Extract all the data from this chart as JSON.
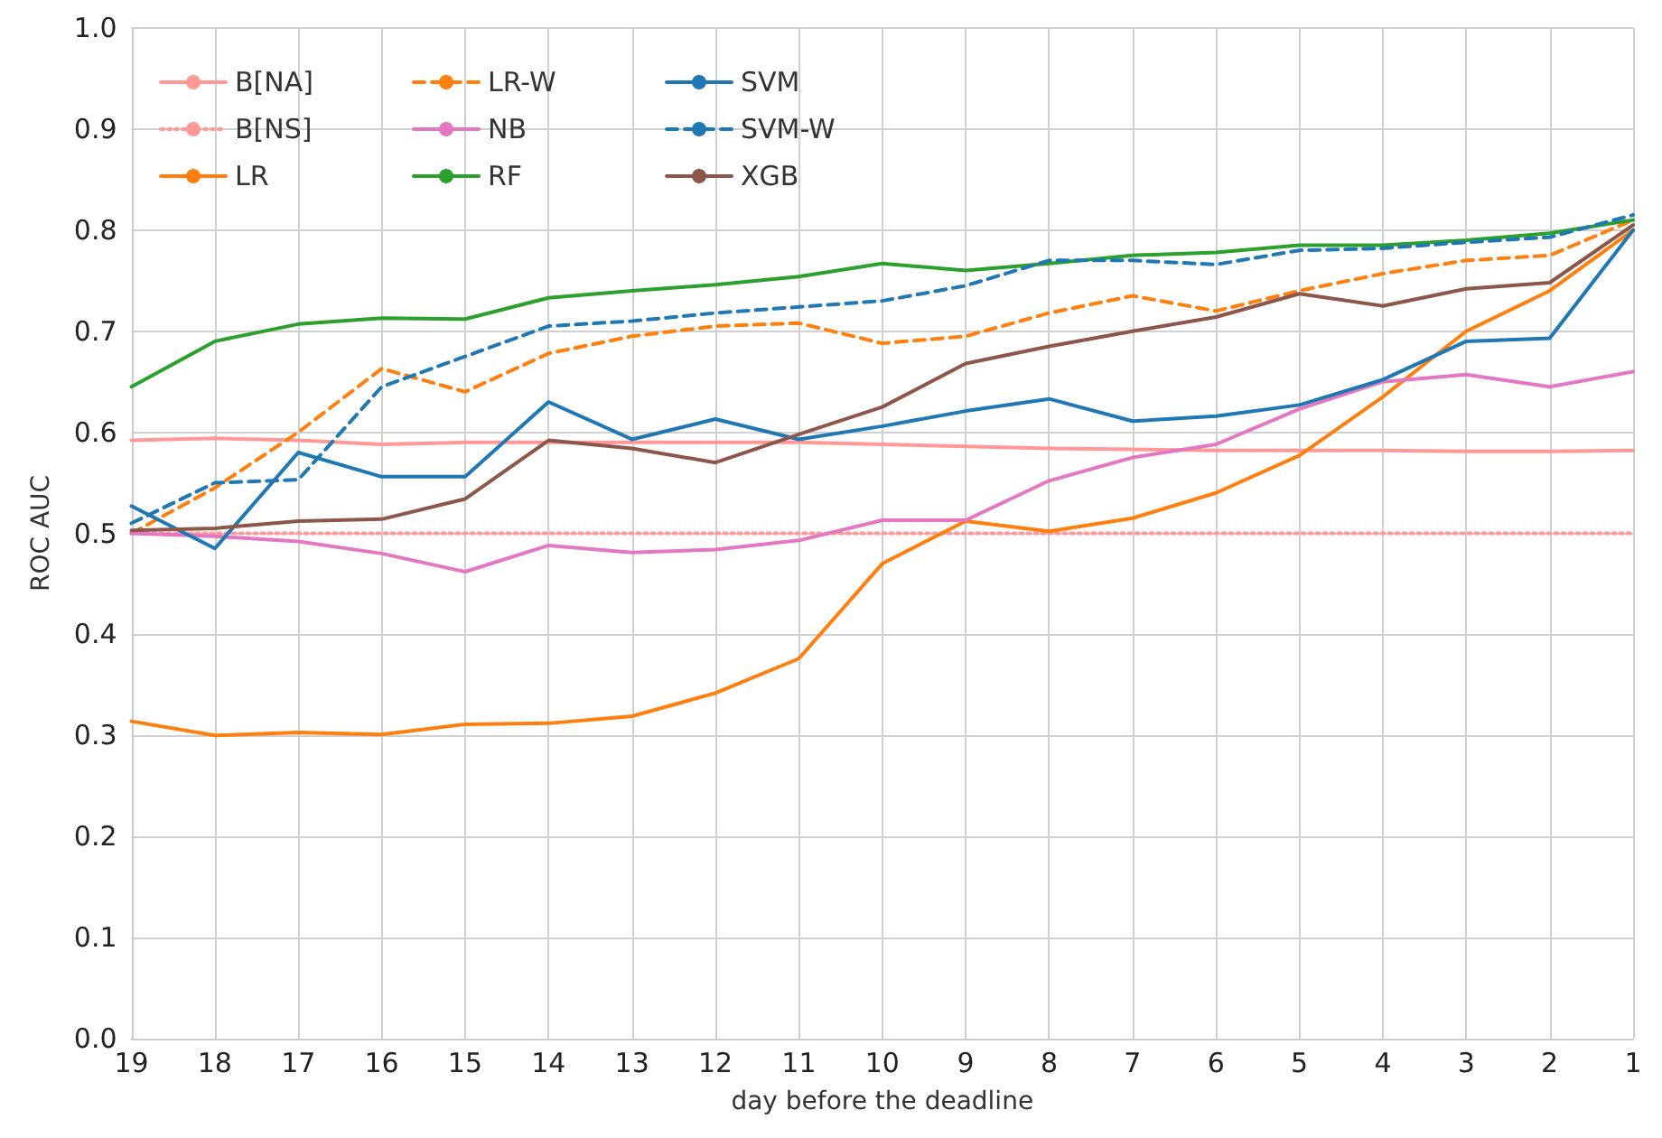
{
  "chart_data": {
    "type": "line",
    "xlabel": "day before the deadline",
    "ylabel": "ROC AUC",
    "x": [
      19,
      18,
      17,
      16,
      15,
      14,
      13,
      12,
      11,
      10,
      9,
      8,
      7,
      6,
      5,
      4,
      3,
      2,
      1
    ],
    "xlim": [
      19,
      1
    ],
    "xticks": [
      19,
      18,
      17,
      16,
      15,
      14,
      13,
      12,
      11,
      10,
      9,
      8,
      7,
      6,
      5,
      4,
      3,
      2,
      1
    ],
    "ylim": [
      0,
      1
    ],
    "yticks": [
      {
        "value": 0,
        "label": "0.0"
      },
      {
        "value": 0.1,
        "label": "0.1"
      },
      {
        "value": 0.2,
        "label": "0.2"
      },
      {
        "value": 0.3,
        "label": "0.3"
      },
      {
        "value": 0.4,
        "label": "0.4"
      },
      {
        "value": 0.5,
        "label": "0.5"
      },
      {
        "value": 0.6,
        "label": "0.6"
      },
      {
        "value": 0.7,
        "label": "0.7"
      },
      {
        "value": 0.8,
        "label": "0.8"
      },
      {
        "value": 0.9,
        "label": "0.9"
      },
      {
        "value": 1,
        "label": "1.0"
      }
    ],
    "grid": true,
    "legend": "top left",
    "marker": "none",
    "series": [
      {
        "name": "B[NA]",
        "color": "#ff9896",
        "line_style": "solid",
        "values": [
          0.592,
          0.594,
          0.592,
          0.588,
          0.59,
          0.59,
          0.59,
          0.59,
          0.59,
          0.588,
          0.586,
          0.584,
          0.583,
          0.582,
          0.582,
          0.582,
          0.581,
          0.581,
          0.582
        ]
      },
      {
        "name": "B[NS]",
        "color": "#ff9896",
        "line_style": "dotted",
        "values": [
          0.5,
          0.5,
          0.5,
          0.5,
          0.5,
          0.5,
          0.5,
          0.5,
          0.5,
          0.5,
          0.5,
          0.5,
          0.5,
          0.5,
          0.5,
          0.5,
          0.5,
          0.5,
          0.5
        ]
      },
      {
        "name": "LR",
        "color": "#ff7f0e",
        "line_style": "solid",
        "values": [
          0.314,
          0.3,
          0.303,
          0.301,
          0.311,
          0.312,
          0.319,
          0.342,
          0.376,
          0.47,
          0.512,
          0.502,
          0.515,
          0.54,
          0.577,
          0.635,
          0.7,
          0.74,
          0.8
        ]
      },
      {
        "name": "LR-W",
        "color": "#ff7f0e",
        "line_style": "dashed",
        "values": [
          0.5,
          0.545,
          0.6,
          0.663,
          0.64,
          0.678,
          0.695,
          0.705,
          0.708,
          0.688,
          0.695,
          0.718,
          0.735,
          0.72,
          0.74,
          0.757,
          0.77,
          0.775,
          0.81
        ]
      },
      {
        "name": "NB",
        "color": "#e377c2",
        "line_style": "solid",
        "values": [
          0.5,
          0.497,
          0.492,
          0.48,
          0.462,
          0.488,
          0.481,
          0.484,
          0.493,
          0.513,
          0.513,
          0.552,
          0.575,
          0.588,
          0.623,
          0.65,
          0.657,
          0.645,
          0.66
        ]
      },
      {
        "name": "RF",
        "color": "#2ca02c",
        "line_style": "solid",
        "values": [
          0.645,
          0.69,
          0.707,
          0.713,
          0.712,
          0.733,
          0.74,
          0.746,
          0.754,
          0.767,
          0.76,
          0.767,
          0.775,
          0.778,
          0.785,
          0.785,
          0.79,
          0.797,
          0.81
        ]
      },
      {
        "name": "SVM",
        "color": "#1f77b4",
        "line_style": "solid",
        "values": [
          0.527,
          0.485,
          0.58,
          0.556,
          0.556,
          0.63,
          0.593,
          0.613,
          0.593,
          0.606,
          0.621,
          0.633,
          0.611,
          0.616,
          0.627,
          0.652,
          0.69,
          0.693,
          0.8
        ]
      },
      {
        "name": "SVM-W",
        "color": "#1f77b4",
        "line_style": "dashed",
        "values": [
          0.51,
          0.55,
          0.553,
          0.645,
          0.675,
          0.705,
          0.71,
          0.718,
          0.724,
          0.73,
          0.745,
          0.77,
          0.77,
          0.766,
          0.78,
          0.782,
          0.788,
          0.793,
          0.815
        ]
      },
      {
        "name": "XGB",
        "color": "#8c564b",
        "line_style": "solid",
        "values": [
          0.503,
          0.505,
          0.512,
          0.514,
          0.534,
          0.592,
          0.584,
          0.57,
          0.598,
          0.625,
          0.668,
          0.685,
          0.7,
          0.714,
          0.737,
          0.725,
          0.742,
          0.748,
          0.805
        ]
      }
    ]
  }
}
